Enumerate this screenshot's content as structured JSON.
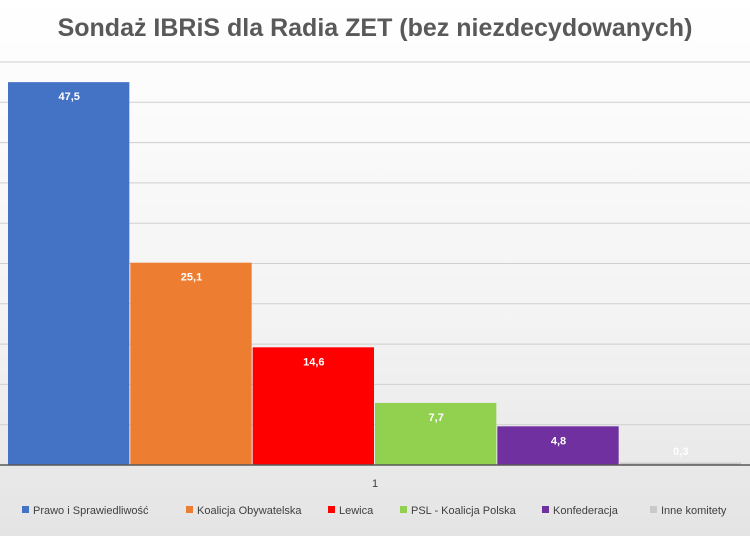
{
  "chart_data": {
    "type": "bar",
    "title": "Sondaż IBRiS dla Radia ZET (bez niezdecydowanych)",
    "categories": [
      "1"
    ],
    "xlabel": "",
    "ylabel": "",
    "ylim": [
      0,
      50
    ],
    "grid": true,
    "legend_position": "bottom",
    "series": [
      {
        "name": "Prawo i Sprawiedliwość",
        "values": [
          47.5
        ],
        "label": "47,5",
        "color": "#4472c4"
      },
      {
        "name": "Koalicja Obywatelska",
        "values": [
          25.1
        ],
        "label": "25,1",
        "color": "#ed7d31"
      },
      {
        "name": "Lewica",
        "values": [
          14.6
        ],
        "label": "14,6",
        "color": "#ff0000"
      },
      {
        "name": "PSL - Koalicja Polska",
        "values": [
          7.7
        ],
        "label": "7,7",
        "color": "#92d050"
      },
      {
        "name": "Konfederacja",
        "values": [
          4.8
        ],
        "label": "4,8",
        "color": "#7030a0"
      },
      {
        "name": "Inne komitety",
        "values": [
          0.3
        ],
        "label": "0,3",
        "color": "#c9c9c9"
      }
    ]
  }
}
